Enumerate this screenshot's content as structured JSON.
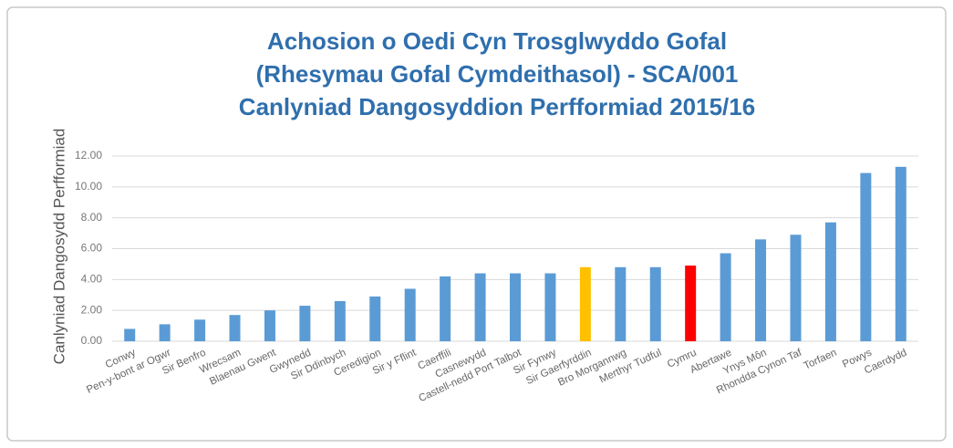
{
  "chart_data": {
    "type": "bar",
    "title": [
      "Achosion o Oedi Cyn Trosglwyddo Gofal",
      "(Rhesymau Gofal Cymdeithasol) - SCA/001",
      "Canlyniad Dangosyddion Perfformiad 2015/16"
    ],
    "y_label": "Canlyniad Dangosydd Perfformiad",
    "categories": [
      "Conwy",
      "Pen-y-bont ar Ogwr",
      "Sir Benfro",
      "Wrecsam",
      "Blaenau Gwent",
      "Gwynedd",
      "Sir Ddinbych",
      "Ceredigion",
      "Sir y Fflint",
      "Caerffili",
      "Casnewydd",
      "Castell-nedd Port Talbot",
      "Sir Fynwy",
      "Sir Gaerfyrddin",
      "Bro Morgannwg",
      "Merthyr Tudful",
      "Cymru",
      "Abertawe",
      "Ynys Môn",
      "Rhondda Cynon Taf",
      "Torfaen",
      "Powys",
      "Caerdydd"
    ],
    "values": [
      0.8,
      1.1,
      1.4,
      1.7,
      2.0,
      2.3,
      2.6,
      2.9,
      3.4,
      4.2,
      4.4,
      4.4,
      4.4,
      4.8,
      4.8,
      4.8,
      4.9,
      5.7,
      6.6,
      6.9,
      7.7,
      10.9,
      11.3
    ],
    "colors": [
      "#5b9bd5",
      "#5b9bd5",
      "#5b9bd5",
      "#5b9bd5",
      "#5b9bd5",
      "#5b9bd5",
      "#5b9bd5",
      "#5b9bd5",
      "#5b9bd5",
      "#5b9bd5",
      "#5b9bd5",
      "#5b9bd5",
      "#5b9bd5",
      "#ffc000",
      "#5b9bd5",
      "#5b9bd5",
      "#ff0000",
      "#5b9bd5",
      "#5b9bd5",
      "#5b9bd5",
      "#5b9bd5",
      "#5b9bd5",
      "#5b9bd5"
    ],
    "ylim": [
      0,
      12
    ],
    "yticks": [
      {
        "value": 0,
        "label": "0.00"
      },
      {
        "value": 2,
        "label": "2.00"
      },
      {
        "value": 4,
        "label": "4.00"
      },
      {
        "value": 6,
        "label": "6.00"
      },
      {
        "value": 8,
        "label": "8.00"
      },
      {
        "value": 10,
        "label": "10.00"
      },
      {
        "value": 12,
        "label": "12.00"
      }
    ],
    "grid": true
  }
}
